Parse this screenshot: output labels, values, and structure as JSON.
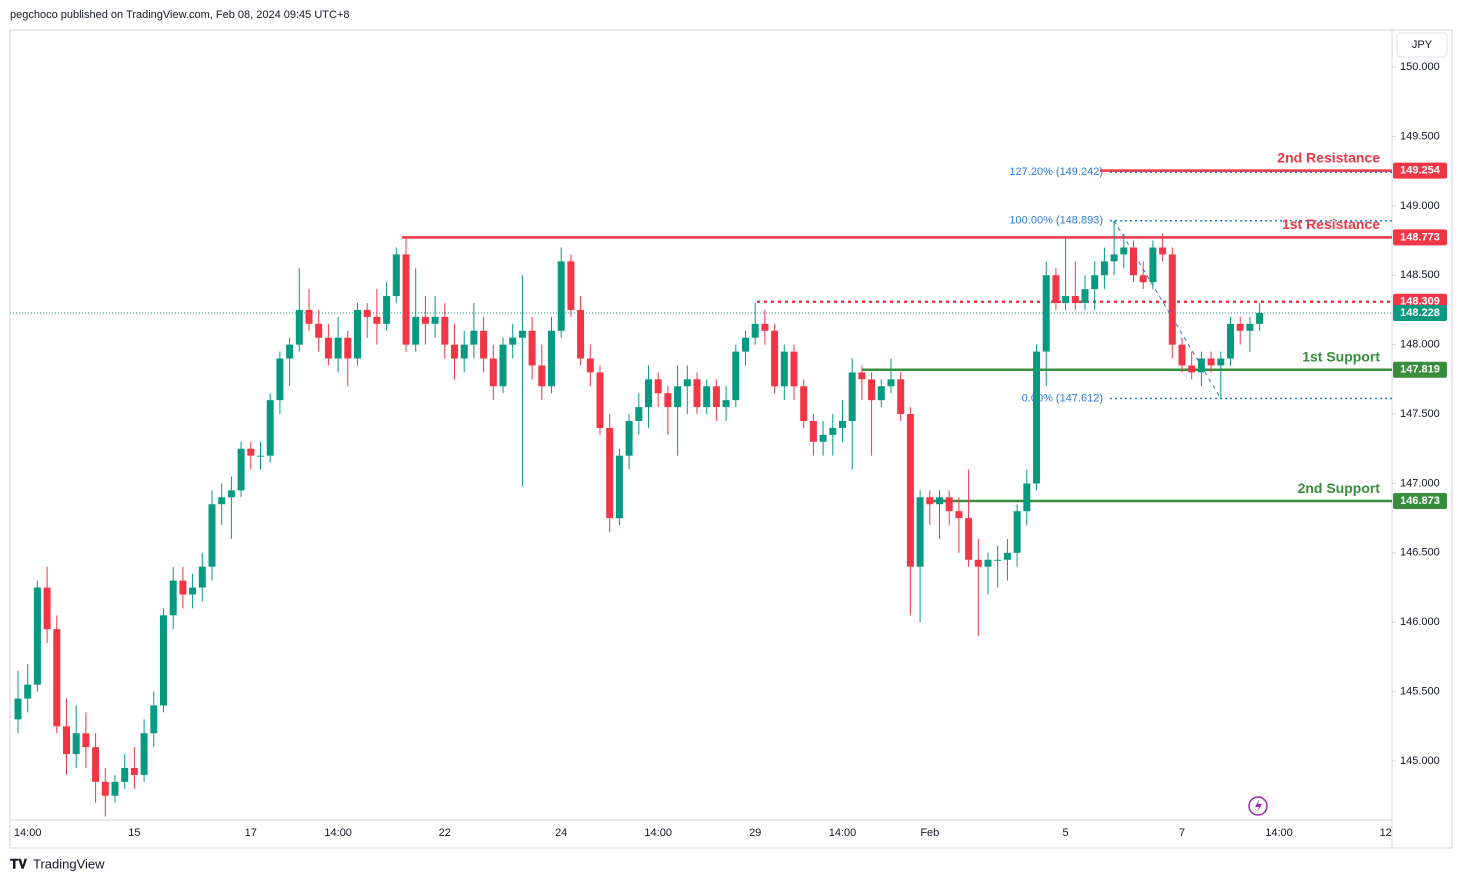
{
  "header": {
    "byline": "pegchoco published on TradingView.com, Feb 08, 2024 09:45 UTC+8",
    "brand": "TradingView"
  },
  "chart_data": {
    "type": "candlestick",
    "currency": "JPY",
    "up_color": "#089981",
    "down_color": "#f23645",
    "ylim": [
      144.575,
      150.267
    ],
    "yticks": [
      {
        "value": 145,
        "label": "145.000"
      },
      {
        "value": 145.5,
        "label": "145.500"
      },
      {
        "value": 146,
        "label": "146.000"
      },
      {
        "value": 146.5,
        "label": "146.500"
      },
      {
        "value": 147,
        "label": "147.000"
      },
      {
        "value": 147.5,
        "label": "147.500"
      },
      {
        "value": 148,
        "label": "148.000"
      },
      {
        "value": 148.5,
        "label": "148.500"
      },
      {
        "value": 149,
        "label": "149.000"
      },
      {
        "value": 149.5,
        "label": "149.500"
      },
      {
        "value": 150,
        "label": "150.000"
      }
    ],
    "grid": false,
    "categories": [
      null,
      "14:00",
      null,
      null,
      null,
      null,
      null,
      null,
      null,
      null,
      null,
      null,
      "15",
      null,
      null,
      null,
      null,
      null,
      null,
      null,
      null,
      null,
      null,
      null,
      "17",
      null,
      null,
      null,
      null,
      null,
      null,
      null,
      null,
      "14:00",
      null,
      null,
      null,
      null,
      null,
      null,
      null,
      null,
      null,
      null,
      "22",
      null,
      null,
      null,
      null,
      null,
      null,
      null,
      null,
      null,
      null,
      null,
      "24",
      null,
      null,
      null,
      null,
      null,
      null,
      null,
      null,
      null,
      "14:00",
      null,
      null,
      null,
      null,
      null,
      null,
      null,
      null,
      null,
      "29",
      null,
      null,
      null,
      null,
      null,
      null,
      null,
      null,
      "14:00",
      null,
      null,
      null,
      null,
      null,
      null,
      null,
      null,
      "Feb",
      null,
      null,
      null,
      null,
      null,
      null,
      null,
      null,
      null,
      null,
      null,
      null,
      null,
      "5",
      null,
      null,
      null,
      null,
      null,
      null,
      null,
      null,
      null,
      null,
      null,
      "7",
      null,
      null,
      null,
      null,
      null,
      null,
      null,
      null,
      null,
      "14:00",
      null,
      null,
      null,
      null,
      null,
      null,
      null,
      null,
      null,
      null,
      "12"
    ],
    "ohlc": [
      [
        145.3,
        145.65,
        145.2,
        145.45
      ],
      [
        145.45,
        145.7,
        145.35,
        145.55
      ],
      [
        145.55,
        146.3,
        145.5,
        146.25
      ],
      [
        146.25,
        146.4,
        145.85,
        145.95
      ],
      [
        145.95,
        146.05,
        145.2,
        145.25
      ],
      [
        145.25,
        145.45,
        144.9,
        145.05
      ],
      [
        145.05,
        145.4,
        144.95,
        145.2
      ],
      [
        145.2,
        145.35,
        144.95,
        145.1
      ],
      [
        145.1,
        145.2,
        144.7,
        144.85
      ],
      [
        144.85,
        144.95,
        144.6,
        144.75
      ],
      [
        144.75,
        144.9,
        144.7,
        144.85
      ],
      [
        144.85,
        145.05,
        144.8,
        144.95
      ],
      [
        144.95,
        145.1,
        144.8,
        144.9
      ],
      [
        144.9,
        145.3,
        144.85,
        145.2
      ],
      [
        145.2,
        145.5,
        145.1,
        145.4
      ],
      [
        145.4,
        146.1,
        145.35,
        146.05
      ],
      [
        146.05,
        146.4,
        145.95,
        146.3
      ],
      [
        146.3,
        146.4,
        146.1,
        146.2
      ],
      [
        146.2,
        146.35,
        146.1,
        146.25
      ],
      [
        146.25,
        146.5,
        146.15,
        146.4
      ],
      [
        146.4,
        146.95,
        146.3,
        146.85
      ],
      [
        146.85,
        147.0,
        146.7,
        146.9
      ],
      [
        146.9,
        147.05,
        146.6,
        146.95
      ],
      [
        146.95,
        147.3,
        146.9,
        147.25
      ],
      [
        147.25,
        147.3,
        147.1,
        147.2
      ],
      [
        147.2,
        147.3,
        147.1,
        147.2
      ],
      [
        147.2,
        147.65,
        147.15,
        147.6
      ],
      [
        147.6,
        147.95,
        147.5,
        147.9
      ],
      [
        147.9,
        148.05,
        147.7,
        148.0
      ],
      [
        148.0,
        148.55,
        147.95,
        148.25
      ],
      [
        148.25,
        148.4,
        148.1,
        148.15
      ],
      [
        148.15,
        148.25,
        147.95,
        148.05
      ],
      [
        148.05,
        148.15,
        147.85,
        147.9
      ],
      [
        147.9,
        148.2,
        147.8,
        148.05
      ],
      [
        148.05,
        148.1,
        147.7,
        147.9
      ],
      [
        147.9,
        148.3,
        147.85,
        148.25
      ],
      [
        148.25,
        148.3,
        148.05,
        148.2
      ],
      [
        148.2,
        148.4,
        148.0,
        148.15
      ],
      [
        148.15,
        148.45,
        148.1,
        148.35
      ],
      [
        148.35,
        148.7,
        148.3,
        148.65
      ],
      [
        148.65,
        148.773,
        147.95,
        148.0
      ],
      [
        148.0,
        148.55,
        147.95,
        148.2
      ],
      [
        148.2,
        148.35,
        148.0,
        148.15
      ],
      [
        148.15,
        148.35,
        148.05,
        148.2
      ],
      [
        148.2,
        148.3,
        147.9,
        148.0
      ],
      [
        148.0,
        148.15,
        147.75,
        147.9
      ],
      [
        147.9,
        148.1,
        147.8,
        148.0
      ],
      [
        148.0,
        148.3,
        147.9,
        148.1
      ],
      [
        148.1,
        148.2,
        147.8,
        147.9
      ],
      [
        147.9,
        148.0,
        147.6,
        147.7
      ],
      [
        147.7,
        148.05,
        147.65,
        148.0
      ],
      [
        148.0,
        148.15,
        147.9,
        148.05
      ],
      [
        148.05,
        148.5,
        146.98,
        148.1
      ],
      [
        148.1,
        148.2,
        147.75,
        147.85
      ],
      [
        147.85,
        148.0,
        147.6,
        147.7
      ],
      [
        147.7,
        148.2,
        147.65,
        148.1
      ],
      [
        148.1,
        148.7,
        148.05,
        148.6
      ],
      [
        148.6,
        148.65,
        148.2,
        148.25
      ],
      [
        148.25,
        148.35,
        147.85,
        147.9
      ],
      [
        147.9,
        148.0,
        147.7,
        147.8
      ],
      [
        147.8,
        147.85,
        147.35,
        147.4
      ],
      [
        147.4,
        147.5,
        146.65,
        146.75
      ],
      [
        146.75,
        147.25,
        146.7,
        147.2
      ],
      [
        147.2,
        147.5,
        147.1,
        147.45
      ],
      [
        147.45,
        147.65,
        147.35,
        147.55
      ],
      [
        147.55,
        147.85,
        147.4,
        147.75
      ],
      [
        147.75,
        147.8,
        147.55,
        147.65
      ],
      [
        147.65,
        147.7,
        147.35,
        147.55
      ],
      [
        147.55,
        147.85,
        147.2,
        147.7
      ],
      [
        147.7,
        147.85,
        147.5,
        147.75
      ],
      [
        147.75,
        147.8,
        147.5,
        147.55
      ],
      [
        147.55,
        147.75,
        147.5,
        147.7
      ],
      [
        147.7,
        147.75,
        147.45,
        147.55
      ],
      [
        147.55,
        147.7,
        147.45,
        147.6
      ],
      [
        147.6,
        148.0,
        147.55,
        147.95
      ],
      [
        147.95,
        148.1,
        147.85,
        148.05
      ],
      [
        148.05,
        148.3,
        148.0,
        148.15
      ],
      [
        148.15,
        148.25,
        148.0,
        148.1
      ],
      [
        148.1,
        148.15,
        147.65,
        147.7
      ],
      [
        147.7,
        148.0,
        147.6,
        147.95
      ],
      [
        147.95,
        148.0,
        147.6,
        147.7
      ],
      [
        147.7,
        147.75,
        147.4,
        147.45
      ],
      [
        147.45,
        147.5,
        147.2,
        147.3
      ],
      [
        147.3,
        147.45,
        147.2,
        147.35
      ],
      [
        147.35,
        147.5,
        147.2,
        147.4
      ],
      [
        147.4,
        147.6,
        147.3,
        147.45
      ],
      [
        147.45,
        147.9,
        147.1,
        147.8
      ],
      [
        147.8,
        147.85,
        147.6,
        147.75
      ],
      [
        147.75,
        147.8,
        147.2,
        147.6
      ],
      [
        147.6,
        147.75,
        147.55,
        147.7
      ],
      [
        147.7,
        147.9,
        147.65,
        147.75
      ],
      [
        147.75,
        147.8,
        147.45,
        147.5
      ],
      [
        147.5,
        147.55,
        146.05,
        146.4
      ],
      [
        146.4,
        146.95,
        146.0,
        146.9
      ],
      [
        146.9,
        146.95,
        146.7,
        146.85
      ],
      [
        146.85,
        146.95,
        146.6,
        146.9
      ],
      [
        146.9,
        146.95,
        146.7,
        146.8
      ],
      [
        146.8,
        146.9,
        146.5,
        146.75
      ],
      [
        146.75,
        147.1,
        146.4,
        146.45
      ],
      [
        146.45,
        146.6,
        145.9,
        146.4
      ],
      [
        146.4,
        146.5,
        146.2,
        146.45
      ],
      [
        146.45,
        146.55,
        146.25,
        146.45
      ],
      [
        146.45,
        146.6,
        146.3,
        146.5
      ],
      [
        146.5,
        146.85,
        146.4,
        146.8
      ],
      [
        146.8,
        147.1,
        146.7,
        147.0
      ],
      [
        147.0,
        148.0,
        146.95,
        147.95
      ],
      [
        147.95,
        148.6,
        147.7,
        148.5
      ],
      [
        148.5,
        148.55,
        148.25,
        148.3
      ],
      [
        148.3,
        148.773,
        148.25,
        148.35
      ],
      [
        148.35,
        148.6,
        148.25,
        148.3
      ],
      [
        148.3,
        148.5,
        148.25,
        148.4
      ],
      [
        148.4,
        148.6,
        148.25,
        148.5
      ],
      [
        148.5,
        148.7,
        148.4,
        148.6
      ],
      [
        148.6,
        148.893,
        148.5,
        148.65
      ],
      [
        148.65,
        148.8,
        148.55,
        148.7
      ],
      [
        148.7,
        148.75,
        148.45,
        148.5
      ],
      [
        148.5,
        148.6,
        148.4,
        148.45
      ],
      [
        148.45,
        148.75,
        148.4,
        148.7
      ],
      [
        148.7,
        148.8,
        148.6,
        148.65
      ],
      [
        148.65,
        148.7,
        147.9,
        148.0
      ],
      [
        148.0,
        148.05,
        147.8,
        147.85
      ],
      [
        147.85,
        147.95,
        147.75,
        147.8
      ],
      [
        147.8,
        147.95,
        147.7,
        147.9
      ],
      [
        147.9,
        147.95,
        147.8,
        147.85
      ],
      [
        147.85,
        147.95,
        147.612,
        147.9
      ],
      [
        147.9,
        148.2,
        147.85,
        148.15
      ],
      [
        148.15,
        148.2,
        148.0,
        148.1
      ],
      [
        148.1,
        148.2,
        147.95,
        148.15
      ],
      [
        148.15,
        148.3,
        148.1,
        148.228
      ],
      null,
      null,
      null,
      null,
      null,
      null,
      null,
      null,
      null,
      null,
      null,
      null,
      null
    ],
    "levels": [
      {
        "name": "2nd Resistance",
        "value": 149.254,
        "color": "#f23645"
      },
      {
        "name": "1st Resistance",
        "value": 148.773,
        "color": "#f23645"
      },
      {
        "value": 148.309,
        "color": "#f23645",
        "dashed": true
      },
      {
        "name": "1st Support",
        "value": 147.819,
        "color": "#388e3c"
      },
      {
        "name": "2nd Support",
        "value": 146.873,
        "color": "#388e3c"
      }
    ],
    "fib": [
      {
        "label": "127.20% (149.242)",
        "level": 149.242
      },
      {
        "label": "100.00% (148.893)",
        "level": 148.893
      },
      {
        "label": "0.00% (147.612)",
        "level": 147.612
      }
    ],
    "fib_color": "#2e7cd6"
  }
}
